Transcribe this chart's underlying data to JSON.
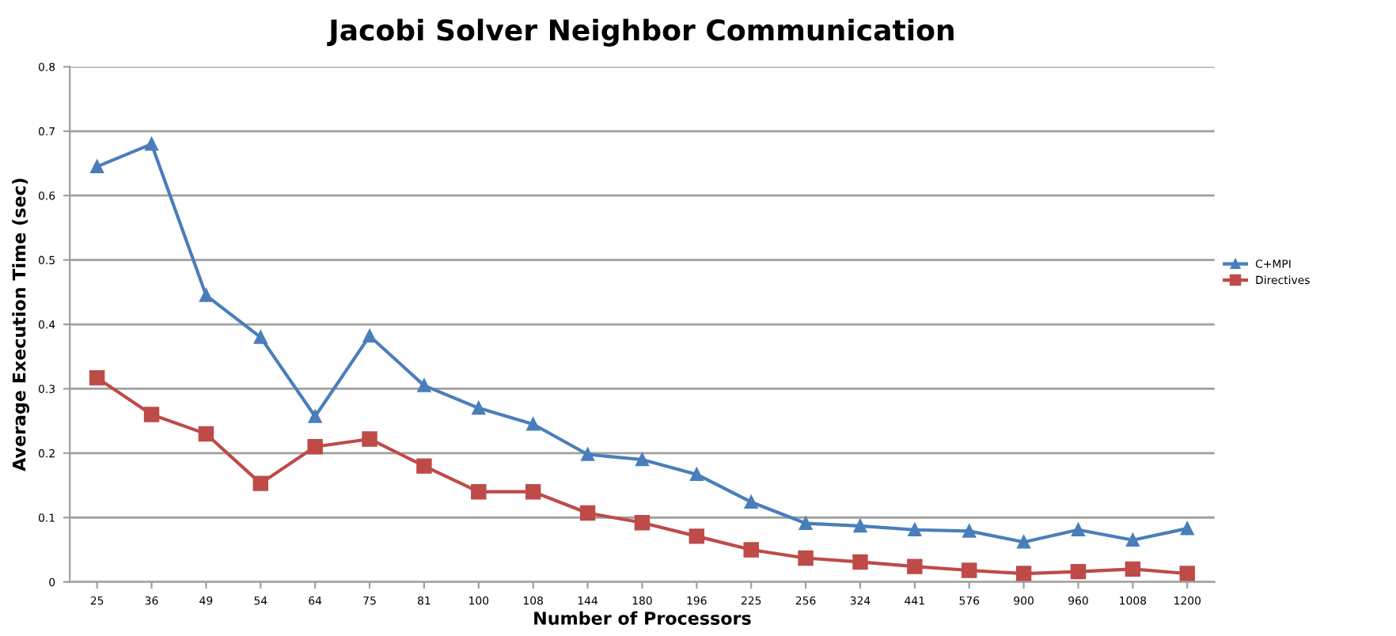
{
  "chart_data": {
    "type": "line",
    "title": "Jacobi Solver Neighbor Communication",
    "xlabel": "Number of Processors",
    "ylabel": "Average Execution Time (sec)",
    "categories": [
      "25",
      "36",
      "49",
      "54",
      "64",
      "75",
      "81",
      "100",
      "108",
      "144",
      "180",
      "196",
      "225",
      "256",
      "324",
      "441",
      "576",
      "900",
      "960",
      "1008",
      "1200"
    ],
    "series": [
      {
        "name": "C+MPI",
        "color": "#4a7ebb",
        "marker": "triangle",
        "values": [
          0.645,
          0.68,
          0.445,
          0.38,
          0.257,
          0.382,
          0.305,
          0.27,
          0.245,
          0.198,
          0.19,
          0.167,
          0.124,
          0.091,
          0.087,
          0.081,
          0.079,
          0.062,
          0.081,
          0.065,
          0.083
        ]
      },
      {
        "name": "Directives",
        "color": "#be4b48",
        "marker": "square",
        "values": [
          0.317,
          0.26,
          0.23,
          0.153,
          0.21,
          0.222,
          0.18,
          0.14,
          0.14,
          0.107,
          0.092,
          0.071,
          0.05,
          0.037,
          0.031,
          0.024,
          0.018,
          0.013,
          0.016,
          0.02,
          0.013
        ]
      }
    ],
    "ylim": [
      0,
      0.8
    ],
    "yticks": [
      0,
      0.1,
      0.2,
      0.3,
      0.4,
      0.5,
      0.6,
      0.7,
      0.8
    ],
    "grid": "y",
    "legend": "right",
    "line_style": "solid"
  }
}
